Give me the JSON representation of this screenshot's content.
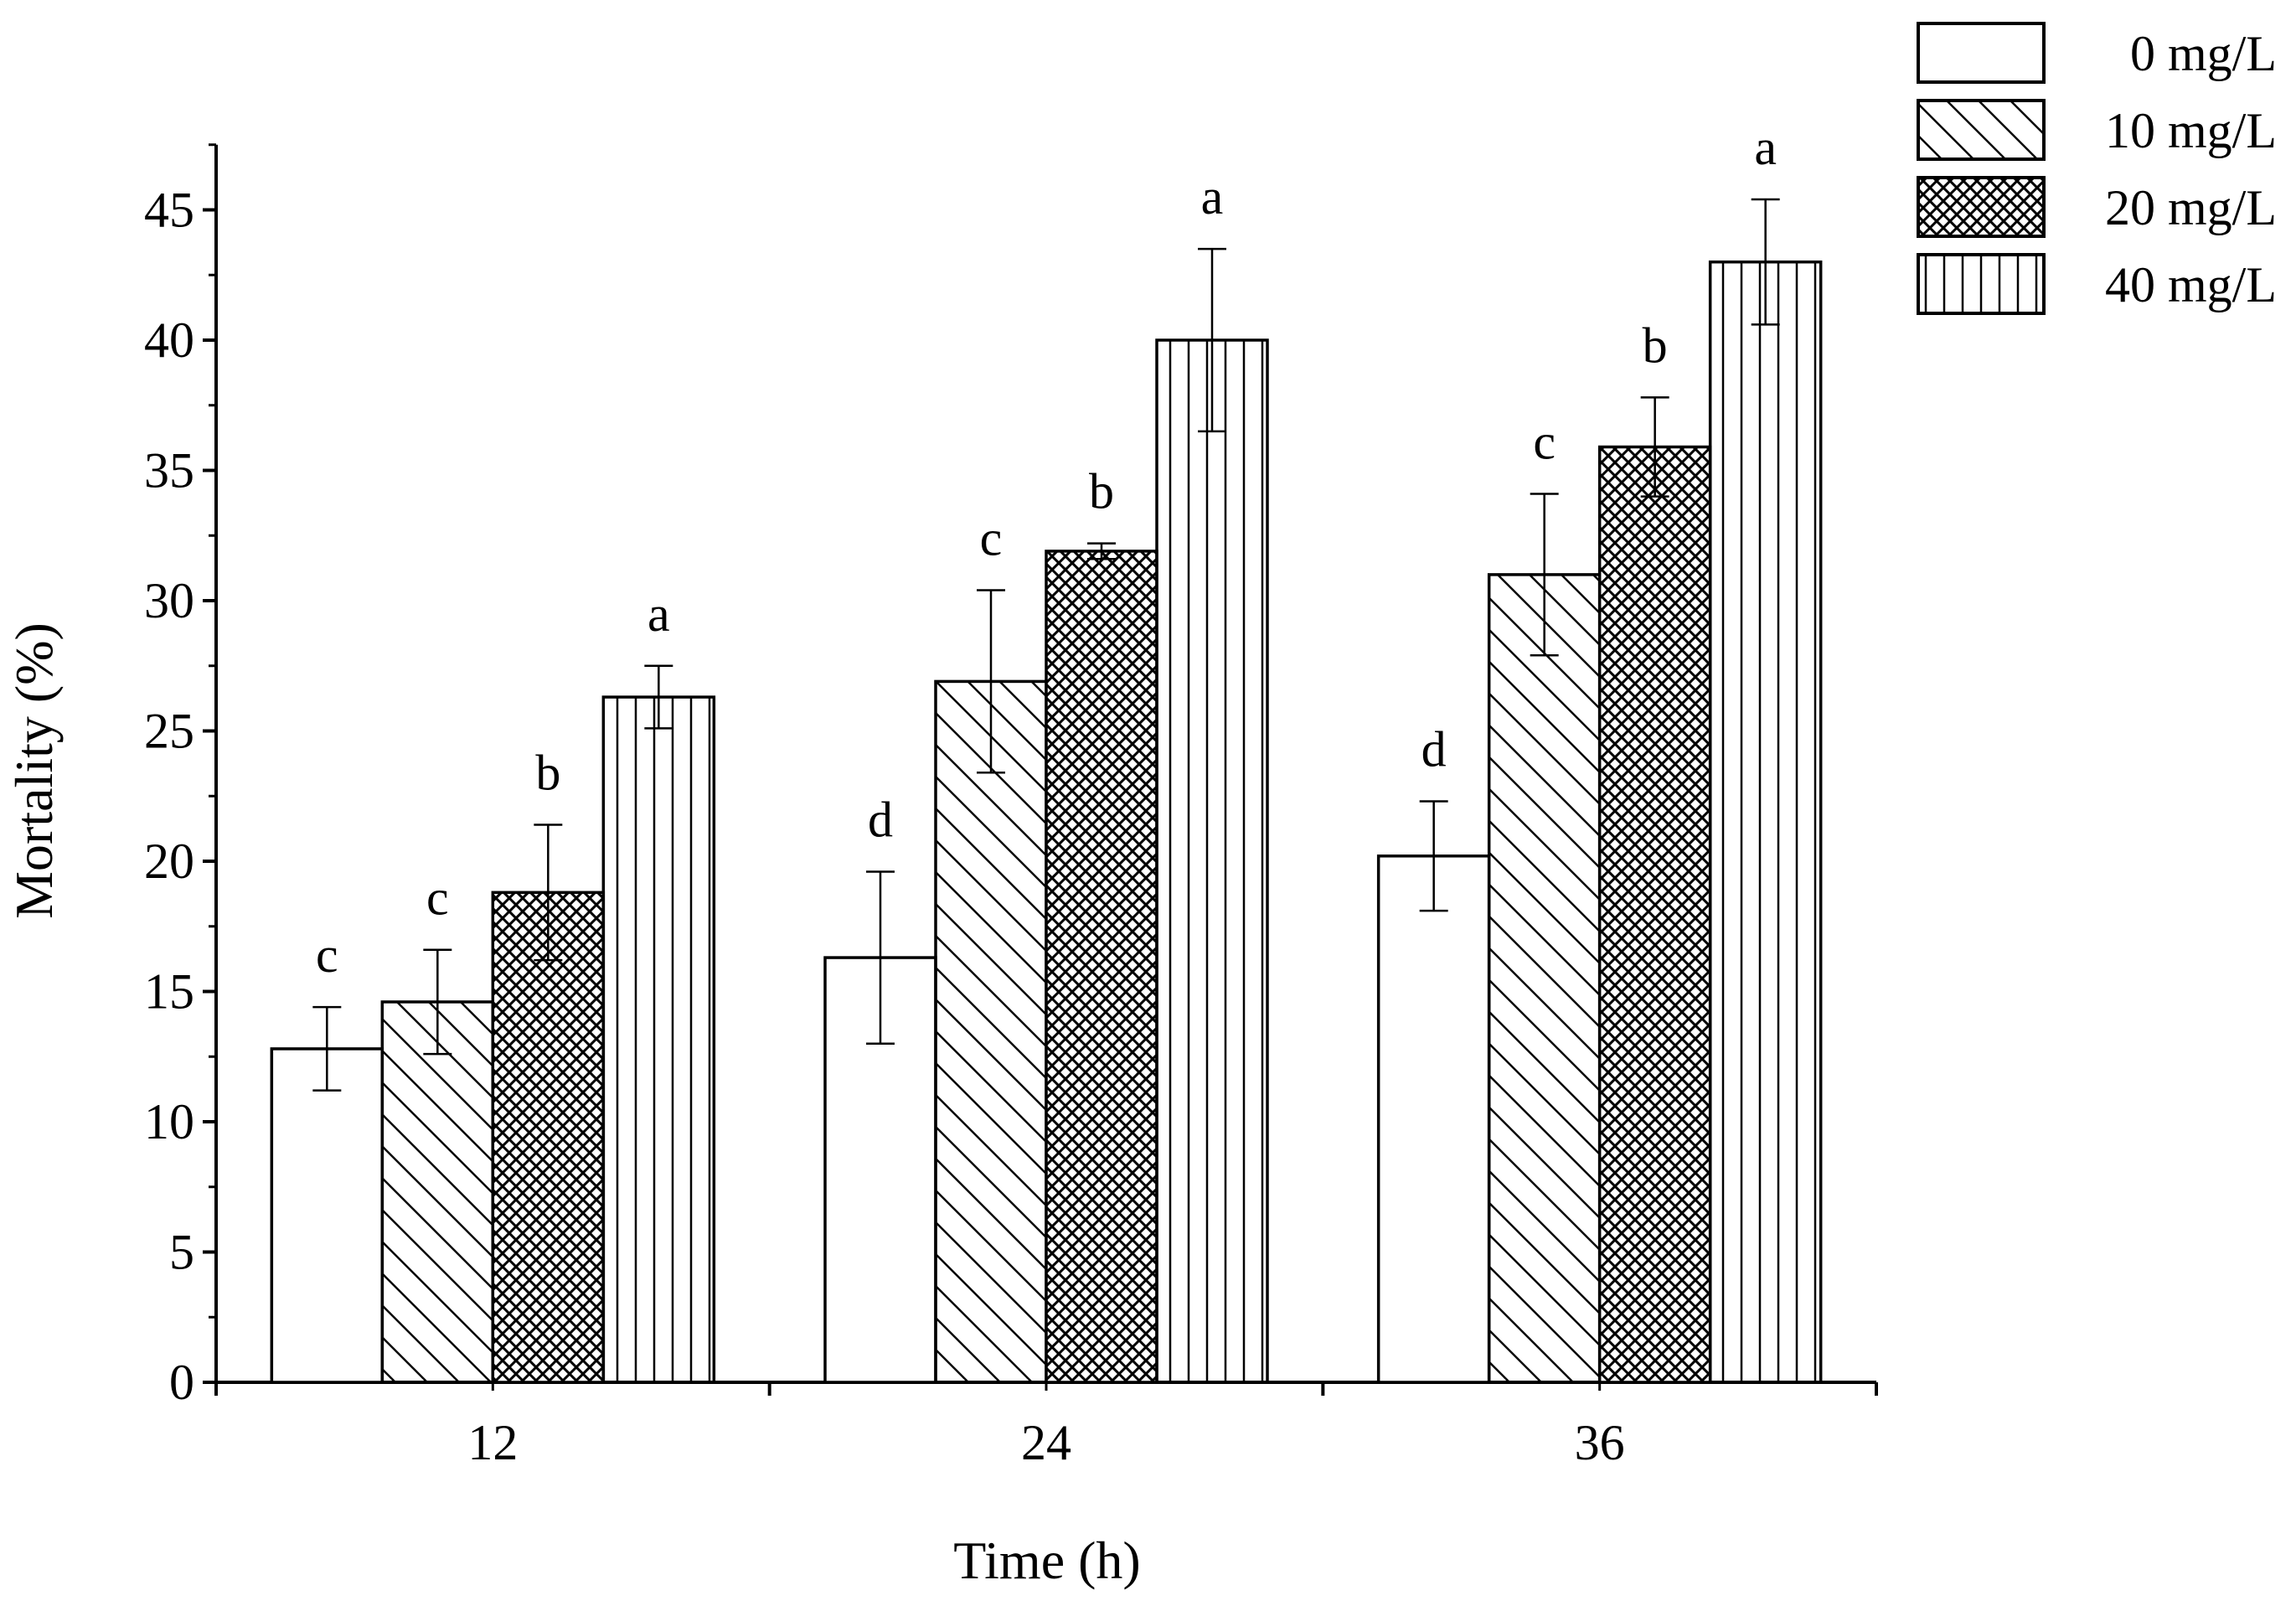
{
  "chart_data": {
    "type": "bar",
    "title": "",
    "xlabel": "Time (h)",
    "ylabel": "Mortality (%)",
    "ylim": [
      0,
      47.5
    ],
    "yticks": [
      0,
      5,
      10,
      15,
      20,
      25,
      30,
      35,
      40,
      45
    ],
    "categories": [
      "12",
      "24",
      "36"
    ],
    "series": [
      {
        "name": "0 mg/L",
        "pattern": "none",
        "values": [
          12.8,
          16.3,
          20.2
        ],
        "errors": [
          1.6,
          3.3,
          2.1
        ],
        "labels": [
          "c",
          "d",
          "d"
        ]
      },
      {
        "name": "10 mg/L",
        "pattern": "diagonal",
        "values": [
          14.6,
          26.9,
          31.0
        ],
        "errors": [
          2.0,
          3.5,
          3.1
        ],
        "labels": [
          "c",
          "c",
          "c"
        ]
      },
      {
        "name": "20 mg/L",
        "pattern": "crosshatch",
        "values": [
          18.8,
          31.9,
          35.9
        ],
        "errors": [
          2.6,
          0.3,
          1.9
        ],
        "labels": [
          "b",
          "b",
          "b"
        ]
      },
      {
        "name": "40 mg/L",
        "pattern": "vertical",
        "values": [
          26.3,
          40.0,
          43.0
        ],
        "errors": [
          1.2,
          3.5,
          2.4
        ],
        "labels": [
          "a",
          "a",
          "a"
        ]
      }
    ],
    "legend_position": "top-right",
    "grid": false
  }
}
